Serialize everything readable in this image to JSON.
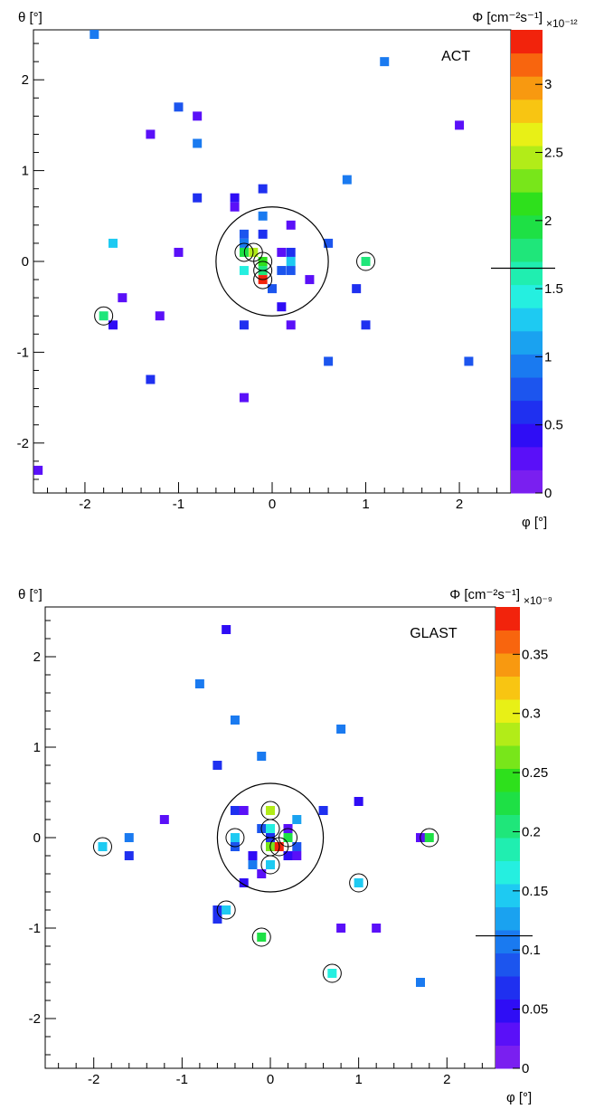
{
  "chart_data": [
    {
      "type": "heatmap",
      "title": "ACT",
      "xlabel": "φ [°]",
      "ylabel": "θ [°]",
      "zlabel": "Φ [cm⁻²s⁻¹]",
      "z_multiplier": "×10⁻¹²",
      "xlim": [
        -2.55,
        2.55
      ],
      "ylim": [
        -2.55,
        2.55
      ],
      "zlim": [
        0,
        3.4
      ],
      "x_ticks": [
        -2,
        -1,
        0,
        1,
        2
      ],
      "x_tick_labels": [
        "-2",
        "-1",
        "0",
        "1",
        "2"
      ],
      "y_ticks": [
        -2,
        -1,
        0,
        1,
        2
      ],
      "y_tick_labels": [
        "-2",
        "-1",
        "0",
        "1",
        "2"
      ],
      "z_ticks": [
        0,
        0.5,
        1,
        1.5,
        2,
        2.5,
        3
      ],
      "z_tick_labels": [
        "0",
        "0.5",
        "1",
        "1.5",
        "2",
        "2.5",
        "3"
      ],
      "z_marker": 1.65,
      "large_circle": {
        "x": 0,
        "y": 0,
        "r": 0.6
      },
      "points": [
        {
          "x": -1.9,
          "y": 2.5,
          "z": 1.0
        },
        {
          "x": 1.2,
          "y": 2.2,
          "z": 1.0
        },
        {
          "x": -1.0,
          "y": 1.7,
          "z": 0.8
        },
        {
          "x": -0.8,
          "y": 1.6,
          "z": 0.2
        },
        {
          "x": 2.0,
          "y": 1.5,
          "z": 0.2
        },
        {
          "x": -1.3,
          "y": 1.4,
          "z": 0.3
        },
        {
          "x": -0.8,
          "y": 1.3,
          "z": 0.9
        },
        {
          "x": 0.8,
          "y": 0.9,
          "z": 1.0
        },
        {
          "x": -0.1,
          "y": 0.8,
          "z": 0.6
        },
        {
          "x": -0.8,
          "y": 0.7,
          "z": 0.6
        },
        {
          "x": -0.4,
          "y": 0.7,
          "z": 0.5
        },
        {
          "x": -0.4,
          "y": 0.6,
          "z": 0.2
        },
        {
          "x": -0.1,
          "y": 0.5,
          "z": 0.9
        },
        {
          "x": 0.2,
          "y": 0.4,
          "z": 0.2
        },
        {
          "x": -0.3,
          "y": 0.3,
          "z": 0.7
        },
        {
          "x": -0.1,
          "y": 0.3,
          "z": 0.6
        },
        {
          "x": -1.7,
          "y": 0.2,
          "z": 1.2
        },
        {
          "x": 0.6,
          "y": 0.2,
          "z": 0.7
        },
        {
          "x": -0.3,
          "y": 0.2,
          "z": 1.0
        },
        {
          "x": -1.0,
          "y": 0.1,
          "z": 0.3
        },
        {
          "x": -0.3,
          "y": 0.1,
          "z": 1.9
        },
        {
          "x": -0.2,
          "y": 0.1,
          "z": 2.5
        },
        {
          "x": 0.1,
          "y": 0.1,
          "z": 0.2
        },
        {
          "x": 0.2,
          "y": 0.1,
          "z": 0.6
        },
        {
          "x": -0.1,
          "y": 0.0,
          "z": 2.2
        },
        {
          "x": 0.2,
          "y": 0.0,
          "z": 1.2
        },
        {
          "x": 1.0,
          "y": 0.0,
          "z": 1.8
        },
        {
          "x": -0.3,
          "y": -0.1,
          "z": 1.4
        },
        {
          "x": -0.1,
          "y": -0.1,
          "z": 1.8
        },
        {
          "x": 0.1,
          "y": -0.1,
          "z": 0.8
        },
        {
          "x": 0.2,
          "y": -0.1,
          "z": 0.8
        },
        {
          "x": -0.1,
          "y": -0.2,
          "z": 3.3
        },
        {
          "x": 0.4,
          "y": -0.2,
          "z": 0.2
        },
        {
          "x": 0.0,
          "y": -0.3,
          "z": 0.8
        },
        {
          "x": 0.9,
          "y": -0.3,
          "z": 0.6
        },
        {
          "x": -1.6,
          "y": -0.4,
          "z": 0.3
        },
        {
          "x": 0.1,
          "y": -0.5,
          "z": 0.4
        },
        {
          "x": -1.8,
          "y": -0.6,
          "z": 1.8
        },
        {
          "x": -1.2,
          "y": -0.6,
          "z": 0.3
        },
        {
          "x": -1.7,
          "y": -0.7,
          "z": 0.5
        },
        {
          "x": -0.3,
          "y": -0.7,
          "z": 0.6
        },
        {
          "x": 0.2,
          "y": -0.7,
          "z": 0.3
        },
        {
          "x": 1.0,
          "y": -0.7,
          "z": 0.6
        },
        {
          "x": 0.6,
          "y": -1.1,
          "z": 0.8
        },
        {
          "x": 2.1,
          "y": -1.1,
          "z": 0.8
        },
        {
          "x": -1.3,
          "y": -1.3,
          "z": 0.6
        },
        {
          "x": -0.3,
          "y": -1.5,
          "z": 0.3
        },
        {
          "x": -2.5,
          "y": -2.3,
          "z": 0.2
        }
      ],
      "circled_points": [
        {
          "x": -0.3,
          "y": 0.1
        },
        {
          "x": -0.2,
          "y": 0.1
        },
        {
          "x": -0.1,
          "y": 0.0
        },
        {
          "x": -0.1,
          "y": -0.1
        },
        {
          "x": -0.1,
          "y": -0.2
        },
        {
          "x": 1.0,
          "y": 0.0
        },
        {
          "x": -1.8,
          "y": -0.6
        }
      ]
    },
    {
      "type": "heatmap",
      "title": "GLAST",
      "xlabel": "φ [°]",
      "ylabel": "θ [°]",
      "zlabel": "Φ [cm⁻²s⁻¹]",
      "z_multiplier": "×10⁻⁹",
      "xlim": [
        -2.55,
        2.55
      ],
      "ylim": [
        -2.55,
        2.55
      ],
      "zlim": [
        0,
        0.39
      ],
      "x_ticks": [
        -2,
        -1,
        0,
        1,
        2
      ],
      "x_tick_labels": [
        "-2",
        "-1",
        "0",
        "1",
        "2"
      ],
      "y_ticks": [
        -2,
        -1,
        0,
        1,
        2
      ],
      "y_tick_labels": [
        "-2",
        "-1",
        "0",
        "1",
        "2"
      ],
      "z_ticks": [
        0,
        0.05,
        0.1,
        0.15,
        0.2,
        0.25,
        0.3,
        0.35
      ],
      "z_tick_labels": [
        "0",
        "0.05",
        "0.1",
        "0.15",
        "0.2",
        "0.25",
        "0.3",
        "0.35"
      ],
      "z_marker": 0.112,
      "large_circle": {
        "x": 0,
        "y": 0,
        "r": 0.6
      },
      "points": [
        {
          "x": -0.5,
          "y": 2.3,
          "z": 0.05
        },
        {
          "x": -0.8,
          "y": 1.7,
          "z": 0.1
        },
        {
          "x": -0.4,
          "y": 1.3,
          "z": 0.1
        },
        {
          "x": 0.8,
          "y": 1.2,
          "z": 0.1
        },
        {
          "x": -0.1,
          "y": 0.9,
          "z": 0.1
        },
        {
          "x": -0.6,
          "y": 0.8,
          "z": 0.07
        },
        {
          "x": 1.0,
          "y": 0.4,
          "z": 0.05
        },
        {
          "x": 0.0,
          "y": 0.3,
          "z": 0.29
        },
        {
          "x": 0.6,
          "y": 0.3,
          "z": 0.07
        },
        {
          "x": -0.4,
          "y": 0.3,
          "z": 0.07
        },
        {
          "x": -0.3,
          "y": 0.3,
          "z": 0.02
        },
        {
          "x": -1.2,
          "y": 0.2,
          "z": 0.02
        },
        {
          "x": 0.3,
          "y": 0.2,
          "z": 0.12
        },
        {
          "x": -0.1,
          "y": 0.1,
          "z": 0.09
        },
        {
          "x": 0.0,
          "y": 0.1,
          "z": 0.17
        },
        {
          "x": 0.2,
          "y": 0.1,
          "z": 0.03
        },
        {
          "x": -1.6,
          "y": 0.0,
          "z": 0.1
        },
        {
          "x": -0.4,
          "y": 0.0,
          "z": 0.14
        },
        {
          "x": 0.0,
          "y": 0.0,
          "z": 0.07
        },
        {
          "x": 0.2,
          "y": 0.0,
          "z": 0.22
        },
        {
          "x": 1.7,
          "y": 0.0,
          "z": 0.03
        },
        {
          "x": 1.8,
          "y": 0.0,
          "z": 0.22
        },
        {
          "x": -1.9,
          "y": -0.1,
          "z": 0.14
        },
        {
          "x": -0.4,
          "y": -0.1,
          "z": 0.09
        },
        {
          "x": 0.0,
          "y": -0.1,
          "z": 0.26
        },
        {
          "x": 0.1,
          "y": -0.1,
          "z": 0.39
        },
        {
          "x": 0.3,
          "y": -0.1,
          "z": 0.09
        },
        {
          "x": -1.6,
          "y": -0.2,
          "z": 0.07
        },
        {
          "x": -0.2,
          "y": -0.2,
          "z": 0.05
        },
        {
          "x": 0.2,
          "y": -0.2,
          "z": 0.05
        },
        {
          "x": 0.3,
          "y": -0.2,
          "z": 0.03
        },
        {
          "x": -0.2,
          "y": -0.3,
          "z": 0.1
        },
        {
          "x": 0.0,
          "y": -0.3,
          "z": 0.14
        },
        {
          "x": -0.1,
          "y": -0.4,
          "z": 0.03
        },
        {
          "x": -0.3,
          "y": -0.5,
          "z": 0.05
        },
        {
          "x": 1.0,
          "y": -0.5,
          "z": 0.14
        },
        {
          "x": -0.6,
          "y": -0.8,
          "z": 0.07
        },
        {
          "x": -0.5,
          "y": -0.8,
          "z": 0.14
        },
        {
          "x": -0.6,
          "y": -0.9,
          "z": 0.07
        },
        {
          "x": 0.8,
          "y": -1.0,
          "z": 0.03
        },
        {
          "x": 1.2,
          "y": -1.0,
          "z": 0.03
        },
        {
          "x": -0.1,
          "y": -1.1,
          "z": 0.22
        },
        {
          "x": 0.7,
          "y": -1.5,
          "z": 0.17
        },
        {
          "x": 1.7,
          "y": -1.6,
          "z": 0.1
        }
      ],
      "circled_points": [
        {
          "x": 0.0,
          "y": 0.3
        },
        {
          "x": -0.4,
          "y": 0.0
        },
        {
          "x": 0.0,
          "y": 0.1
        },
        {
          "x": 0.2,
          "y": 0.0
        },
        {
          "x": 0.0,
          "y": -0.1
        },
        {
          "x": 0.1,
          "y": -0.1
        },
        {
          "x": 0.0,
          "y": -0.3
        },
        {
          "x": -1.9,
          "y": -0.1
        },
        {
          "x": 1.8,
          "y": 0.0
        },
        {
          "x": 1.0,
          "y": -0.5
        },
        {
          "x": -0.5,
          "y": -0.8
        },
        {
          "x": -0.1,
          "y": -1.1
        },
        {
          "x": 0.7,
          "y": -1.5
        }
      ]
    }
  ]
}
